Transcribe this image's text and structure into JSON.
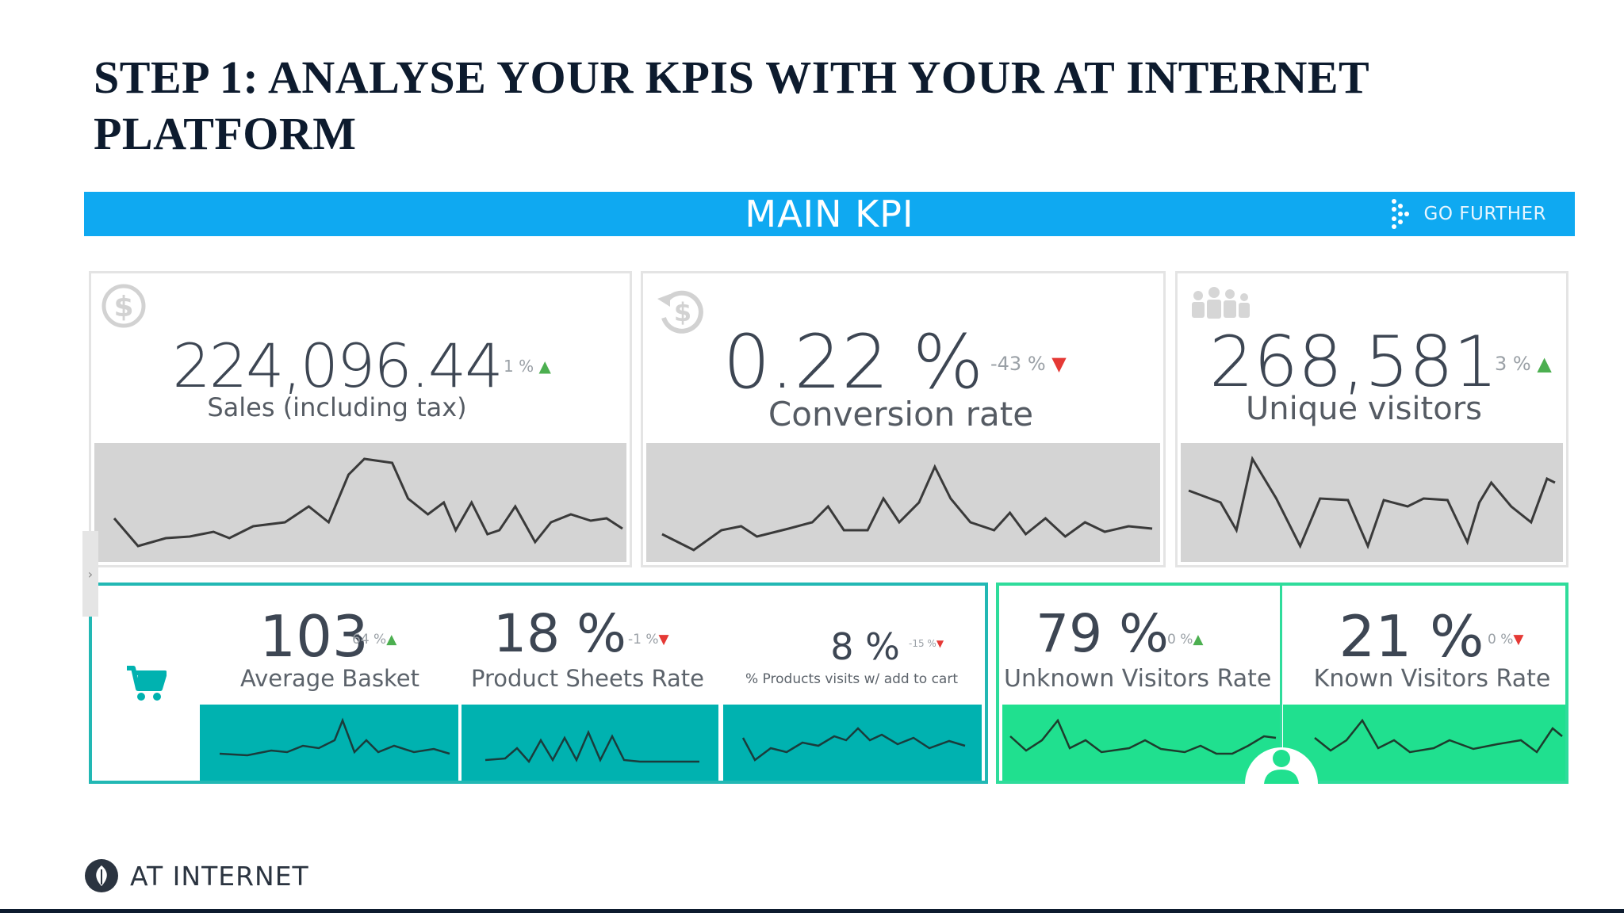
{
  "slide": {
    "title": "STEP 1: ANALYSE YOUR KPIS WITH YOUR AT INTERNET PLATFORM"
  },
  "kpi_bar": {
    "title": "MAIN KPI",
    "go_further_label": "GO FURTHER"
  },
  "top_cards": [
    {
      "value": "224,096.44",
      "delta": "1 %",
      "trend": "up",
      "label": "Sales (including tax)",
      "icon": "dollar-icon"
    },
    {
      "value": "0.22 %",
      "delta": "-43 %",
      "trend": "down",
      "label": "Conversion rate",
      "icon": "refund-icon"
    },
    {
      "value": "268,581",
      "delta": "3 %",
      "trend": "up",
      "label": "Unique visitors",
      "icon": "people-icon"
    }
  ],
  "basket_panel": {
    "icon": "cart-icon",
    "metrics": [
      {
        "value": "103",
        "delta": "64 %",
        "trend": "up",
        "label": "Average Basket"
      },
      {
        "value": "18 %",
        "delta": "-1 %",
        "trend": "down",
        "label": "Product Sheets Rate"
      },
      {
        "value": "8 %",
        "delta": "-15 %",
        "trend": "down",
        "label": "% Products visits w/ add to cart"
      }
    ]
  },
  "visitors_panel": {
    "icon": "user-icon",
    "metrics": [
      {
        "value": "79 %",
        "delta": "0 %",
        "trend": "up",
        "label": "Unknown Visitors Rate"
      },
      {
        "value": "21 %",
        "delta": "0 %",
        "trend": "down",
        "label": "Known Visitors Rate"
      }
    ]
  },
  "footer": {
    "brand": "AT INTERNET",
    "logo_icon": "at-internet-logo"
  },
  "colors": {
    "bar": "#0fa9f1",
    "teal": "#00b2b0",
    "green": "#20e08f",
    "up": "#4caf50",
    "down": "#e53935"
  }
}
